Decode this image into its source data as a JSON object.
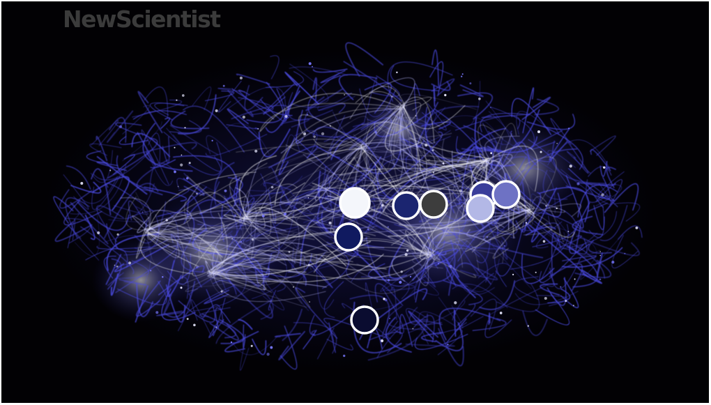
{
  "logo": {
    "text": "NewScientist"
  },
  "image": {
    "description_icon": "brain-network-icon",
    "network_color": "#4a4ae0",
    "highlight_color": "#ffffff"
  },
  "markers": [
    {
      "name": "marker-white",
      "color": "#f4f6fb"
    },
    {
      "name": "marker-navy-left",
      "color": "#101a60"
    },
    {
      "name": "marker-navy-center",
      "color": "#1b2570"
    },
    {
      "name": "marker-dark-gray",
      "color": "#3d3d3d"
    },
    {
      "name": "marker-indigo-top",
      "color": "#3a3e9a"
    },
    {
      "name": "marker-periwinkle",
      "color": "#6e72c4"
    },
    {
      "name": "marker-light-lavender",
      "color": "#b3b8e6"
    },
    {
      "name": "marker-near-black",
      "color": "#0a0c30"
    }
  ]
}
